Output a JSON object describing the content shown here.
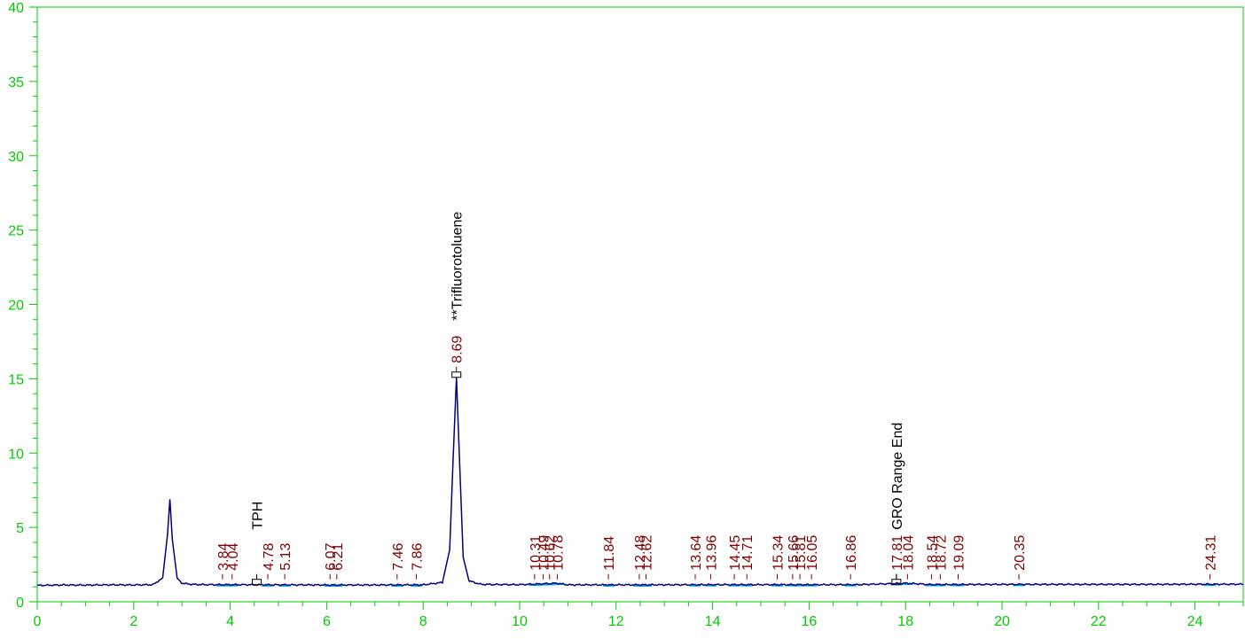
{
  "chart_data": {
    "type": "line",
    "title": "",
    "xlabel": "",
    "ylabel": "",
    "xlim": [
      0,
      25
    ],
    "ylim": [
      0,
      40
    ],
    "x_ticks": [
      "0",
      "2",
      "4",
      "6",
      "8",
      "10",
      "12",
      "14",
      "16",
      "18",
      "20",
      "22",
      "24"
    ],
    "y_ticks": [
      "0",
      "5",
      "10",
      "15",
      "20",
      "25",
      "30",
      "35",
      "40"
    ],
    "grid": false,
    "colors": {
      "axis": "#00cc00",
      "trace": "#000080",
      "baseline": "#00b0f0",
      "peak_label": "#800000",
      "event_label": "#000000"
    },
    "series": [
      {
        "x": [
          0,
          0.5,
          1.0,
          1.5,
          2.0,
          2.4,
          2.6,
          2.7,
          2.75,
          2.8,
          2.9,
          3.0,
          3.2,
          3.5,
          4.0,
          5.0,
          6.0,
          7.0,
          8.0,
          8.4,
          8.55,
          8.62,
          8.69,
          8.76,
          8.83,
          8.95,
          9.2,
          10.0,
          10.78,
          11.0,
          12.0,
          13.0,
          14.0,
          15.0,
          16.0,
          17.0,
          18.04,
          18.5,
          19.0,
          20.0,
          21.0,
          22.0,
          23.0,
          24.0,
          25.0
        ],
        "y": [
          1.1,
          1.13,
          1.12,
          1.14,
          1.13,
          1.15,
          1.6,
          4.5,
          6.9,
          4.2,
          1.6,
          1.25,
          1.17,
          1.15,
          1.15,
          1.14,
          1.13,
          1.13,
          1.14,
          1.3,
          3.5,
          9.5,
          15.1,
          9.0,
          3.0,
          1.4,
          1.17,
          1.15,
          1.25,
          1.14,
          1.14,
          1.14,
          1.15,
          1.15,
          1.15,
          1.15,
          1.25,
          1.16,
          1.16,
          1.17,
          1.17,
          1.17,
          1.17,
          1.18,
          1.18
        ]
      }
    ],
    "peaks": [
      {
        "rt": 3.84,
        "label": "3.84"
      },
      {
        "rt": 4.04,
        "label": "4.04"
      },
      {
        "rt": 4.78,
        "label": "4.78"
      },
      {
        "rt": 5.13,
        "label": "5.13"
      },
      {
        "rt": 6.07,
        "label": "6.07"
      },
      {
        "rt": 6.21,
        "label": "6.21"
      },
      {
        "rt": 7.46,
        "label": "7.46"
      },
      {
        "rt": 7.86,
        "label": "7.86"
      },
      {
        "rt": 8.69,
        "label": "8.69",
        "y": 15.1
      },
      {
        "rt": 10.31,
        "label": "10.31"
      },
      {
        "rt": 10.49,
        "label": "10.49"
      },
      {
        "rt": 10.62,
        "label": "10.62"
      },
      {
        "rt": 10.78,
        "label": "10.78"
      },
      {
        "rt": 11.84,
        "label": "11.84"
      },
      {
        "rt": 12.48,
        "label": "12.48"
      },
      {
        "rt": 12.62,
        "label": "12.62"
      },
      {
        "rt": 13.64,
        "label": "13.64"
      },
      {
        "rt": 13.96,
        "label": "13.96"
      },
      {
        "rt": 14.45,
        "label": "14.45"
      },
      {
        "rt": 14.71,
        "label": "14.71"
      },
      {
        "rt": 15.34,
        "label": "15.34"
      },
      {
        "rt": 15.66,
        "label": "15.66"
      },
      {
        "rt": 15.81,
        "label": "15.81"
      },
      {
        "rt": 16.05,
        "label": "16.05"
      },
      {
        "rt": 16.86,
        "label": "16.86"
      },
      {
        "rt": 17.81,
        "label": "17.81"
      },
      {
        "rt": 18.04,
        "label": "18.04"
      },
      {
        "rt": 18.54,
        "label": "18.54"
      },
      {
        "rt": 18.72,
        "label": "18.72"
      },
      {
        "rt": 19.09,
        "label": "19.09"
      },
      {
        "rt": 20.35,
        "label": "20.35"
      },
      {
        "rt": 24.31,
        "label": "24.31"
      }
    ],
    "annotations": [
      {
        "rt": 8.69,
        "text": "**Trifluorotoluene",
        "attached_to": "8.69"
      },
      {
        "rt": 4.55,
        "text": "TPH"
      },
      {
        "rt": 17.81,
        "text": "GRO Range End"
      }
    ]
  }
}
